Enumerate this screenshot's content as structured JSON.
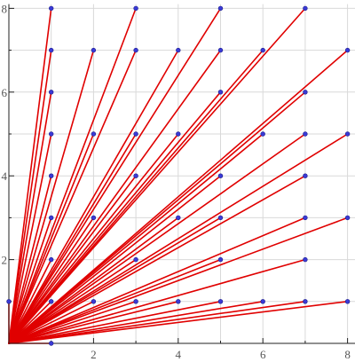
{
  "chart_data": {
    "type": "scatter",
    "title": "",
    "xlabel": "",
    "ylabel": "",
    "xlim": [
      0,
      8.2
    ],
    "ylim": [
      0,
      8.1
    ],
    "grid": true,
    "x_ticks": [
      "2",
      "4",
      "6",
      "8"
    ],
    "y_ticks": [
      "2",
      "4",
      "6",
      "8"
    ],
    "line_color": "#e00000",
    "point_color": "#3a3ad6",
    "origin": [
      0,
      0
    ],
    "points": [
      [
        0,
        1
      ],
      [
        1,
        0
      ],
      [
        1,
        1
      ],
      [
        1,
        2
      ],
      [
        1,
        3
      ],
      [
        1,
        4
      ],
      [
        1,
        5
      ],
      [
        1,
        6
      ],
      [
        1,
        7
      ],
      [
        1,
        8
      ],
      [
        2,
        1
      ],
      [
        2,
        3
      ],
      [
        2,
        5
      ],
      [
        2,
        7
      ],
      [
        3,
        1
      ],
      [
        3,
        2
      ],
      [
        3,
        4
      ],
      [
        3,
        5
      ],
      [
        3,
        7
      ],
      [
        3,
        8
      ],
      [
        4,
        1
      ],
      [
        4,
        3
      ],
      [
        4,
        5
      ],
      [
        4,
        7
      ],
      [
        5,
        1
      ],
      [
        5,
        2
      ],
      [
        5,
        3
      ],
      [
        5,
        4
      ],
      [
        5,
        6
      ],
      [
        5,
        7
      ],
      [
        5,
        8
      ],
      [
        6,
        1
      ],
      [
        6,
        5
      ],
      [
        6,
        7
      ],
      [
        7,
        1
      ],
      [
        7,
        2
      ],
      [
        7,
        3
      ],
      [
        7,
        4
      ],
      [
        7,
        5
      ],
      [
        7,
        6
      ],
      [
        7,
        8
      ],
      [
        8,
        1
      ],
      [
        8,
        3
      ],
      [
        8,
        5
      ],
      [
        8,
        7
      ]
    ]
  }
}
